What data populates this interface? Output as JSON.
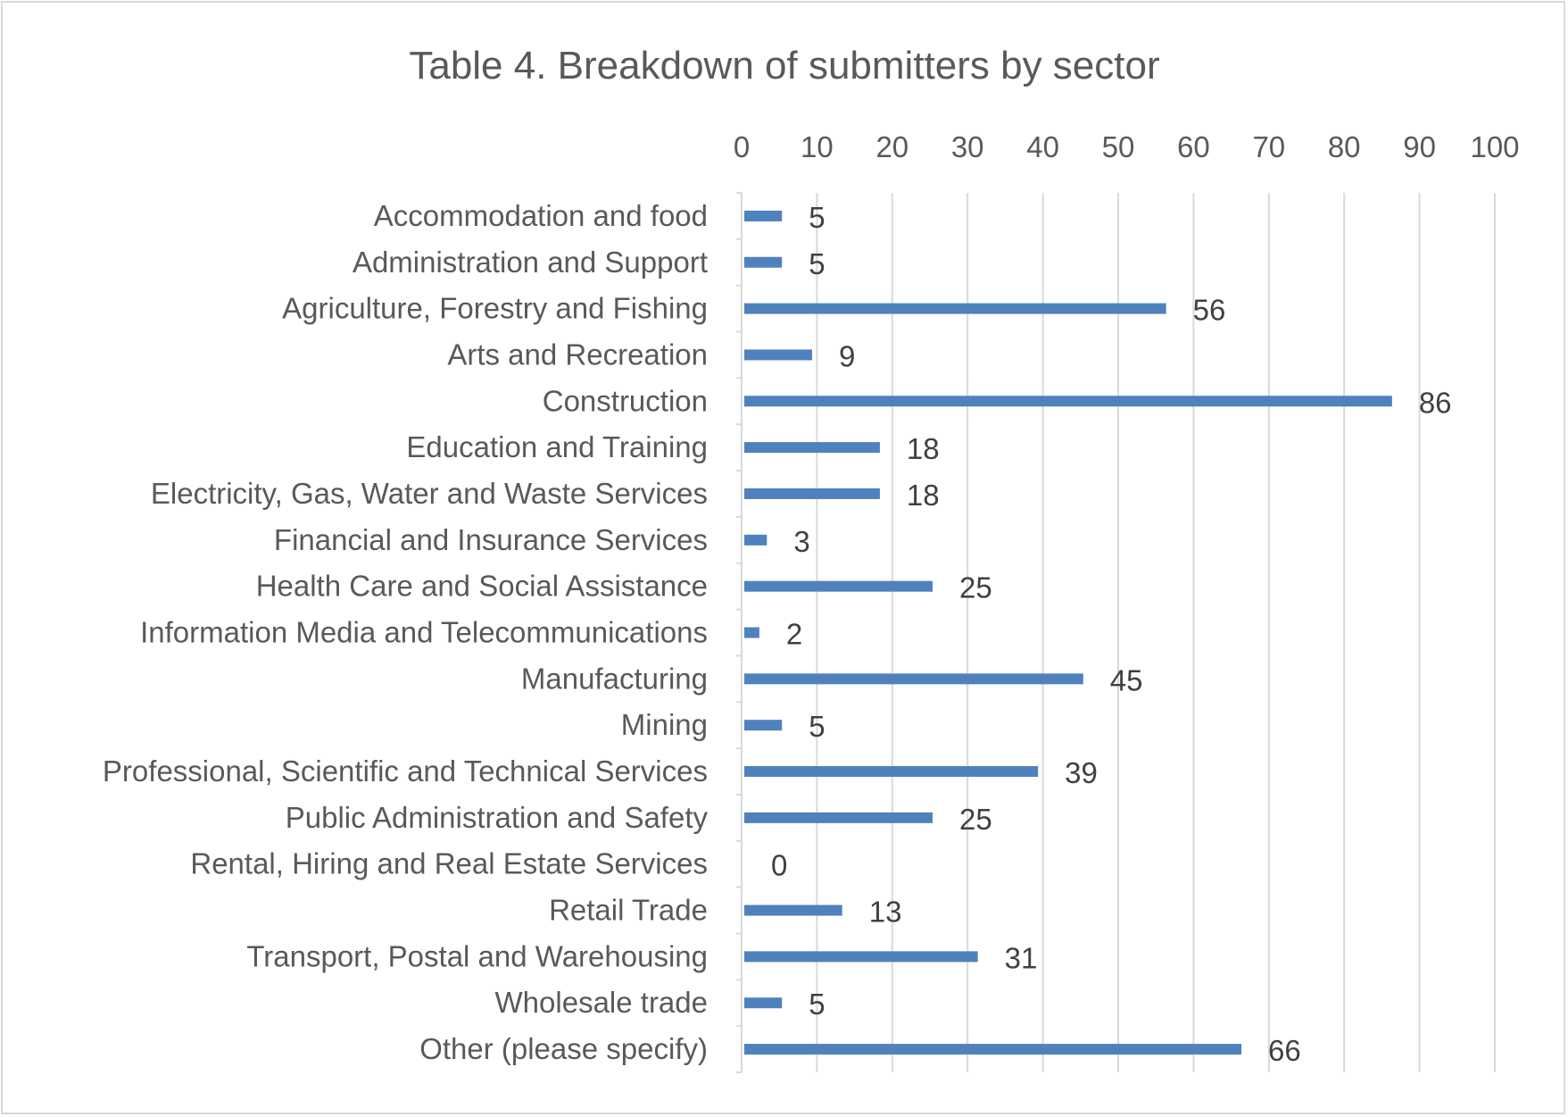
{
  "chart_data": {
    "type": "bar",
    "orientation": "horizontal",
    "title": "Table 4. Breakdown of submitters by sector",
    "xlabel": "",
    "ylabel": "",
    "xlim": [
      0,
      100
    ],
    "x_ticks": [
      "0",
      "10",
      "20",
      "30",
      "40",
      "50",
      "60",
      "70",
      "80",
      "90",
      "100"
    ],
    "axis_position": "top",
    "grid": true,
    "legend": "none",
    "bar_color": "#4f81bd",
    "categories": [
      "Accommodation and food",
      "Administration and Support",
      "Agriculture, Forestry and Fishing",
      "Arts and Recreation",
      "Construction",
      "Education and Training",
      "Electricity, Gas, Water and Waste Services",
      "Financial and Insurance Services",
      "Health Care and Social Assistance",
      "Information Media and Telecommunications",
      "Manufacturing",
      "Mining",
      "Professional, Scientific and Technical Services",
      "Public Administration and Safety",
      "Rental, Hiring and Real Estate Services",
      "Retail Trade",
      "Transport, Postal and Warehousing",
      "Wholesale trade",
      "Other (please specify)"
    ],
    "values": [
      5,
      5,
      56,
      9,
      86,
      18,
      18,
      3,
      25,
      2,
      45,
      5,
      39,
      25,
      0,
      13,
      31,
      5,
      66
    ]
  }
}
